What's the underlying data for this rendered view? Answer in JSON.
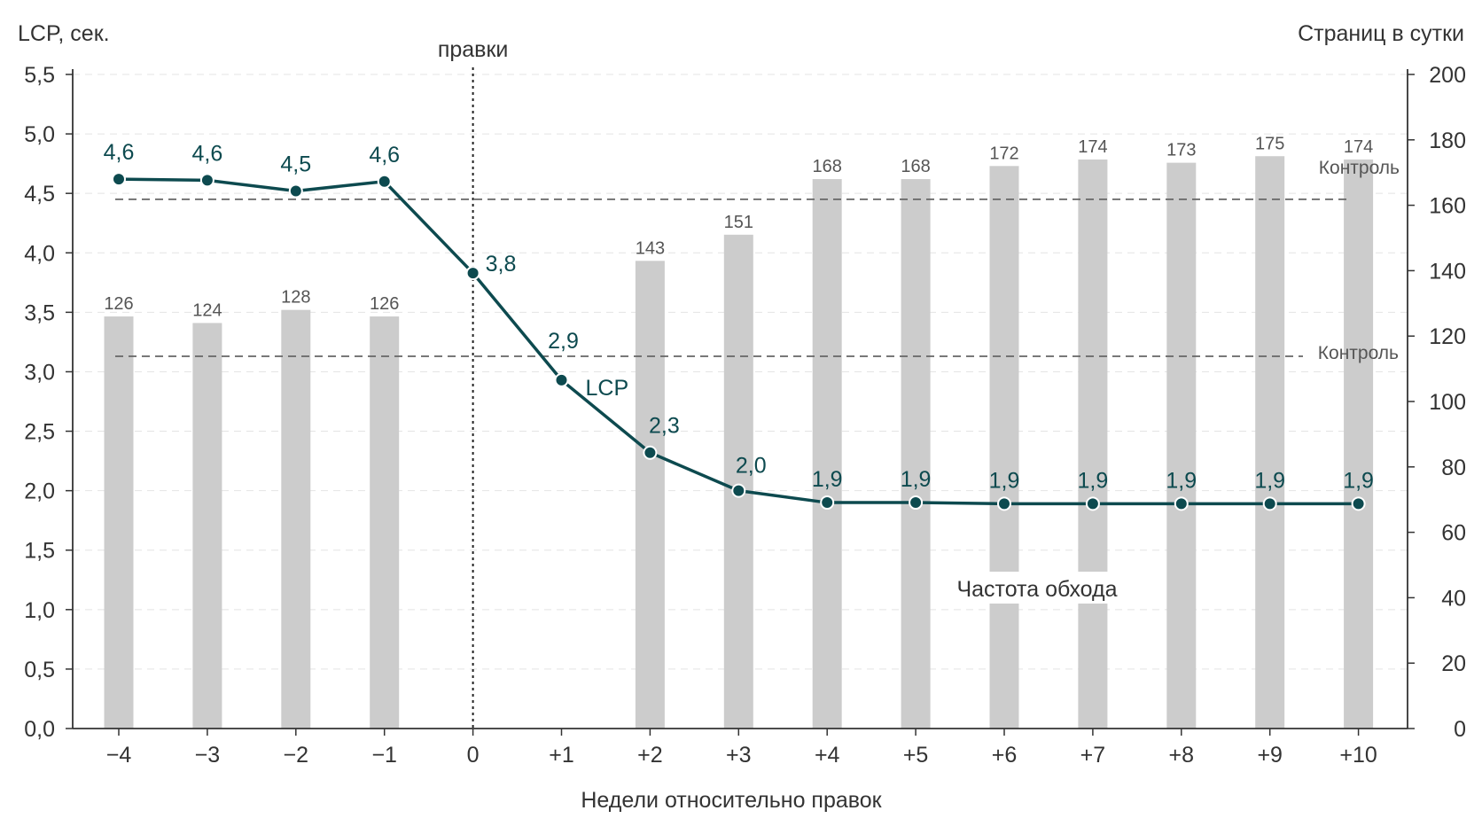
{
  "chart_data": {
    "type": "bar+line",
    "title": "",
    "xlabel": "Недели относительно правок",
    "ylabel_left": "LCP, сек.",
    "ylabel_right": "Страниц в сутки",
    "categories": [
      "−4",
      "−3",
      "−2",
      "−1",
      "0",
      "+1",
      "+2",
      "+3",
      "+4",
      "+5",
      "+6",
      "+7",
      "+8",
      "+9",
      "+10"
    ],
    "ylim_left": [
      0,
      5.5
    ],
    "yticks_left": [
      "0,0",
      "0,5",
      "1,0",
      "1,5",
      "2,0",
      "2,5",
      "3,0",
      "3,5",
      "4,0",
      "4,5",
      "5,0",
      "5,5"
    ],
    "ylim_right": [
      0,
      200
    ],
    "yticks_right": [
      "0",
      "20",
      "40",
      "60",
      "80",
      "100",
      "120",
      "140",
      "160",
      "180",
      "200"
    ],
    "bars": {
      "name": "Частота обхода",
      "axis": "right",
      "color": "#cccccc",
      "values": [
        126,
        124,
        128,
        126,
        null,
        null,
        143,
        151,
        168,
        168,
        172,
        174,
        173,
        175,
        174
      ],
      "labels": [
        "126",
        "124",
        "128",
        "126",
        "",
        "",
        "143",
        "151",
        "168",
        "168",
        "172",
        "174",
        "173",
        "175",
        "174"
      ]
    },
    "line": {
      "name": "LCP",
      "axis": "left",
      "color": "#0d4a4f",
      "values": [
        4.62,
        4.61,
        4.52,
        4.6,
        3.83,
        2.93,
        2.32,
        2.0,
        1.9,
        1.9,
        1.89,
        1.89,
        1.89,
        1.89,
        1.89
      ],
      "labels": [
        "4,6",
        "4,6",
        "4,5",
        "4,6",
        "3,8",
        "2,9",
        "2,3",
        "2,0",
        "1,9",
        "1,9",
        "1,9",
        "1,9",
        "1,9",
        "1,9",
        "1,9"
      ]
    },
    "reference_lines": [
      {
        "label": "Контроль",
        "axis": "left",
        "value": 4.45,
        "style": "dashed"
      },
      {
        "label": "Контроль",
        "axis": "left",
        "value": 3.13,
        "style": "dashed"
      }
    ],
    "event_marker": {
      "label": "правки",
      "category": "0",
      "style": "dotted"
    },
    "grid": "horizontal dashed"
  }
}
